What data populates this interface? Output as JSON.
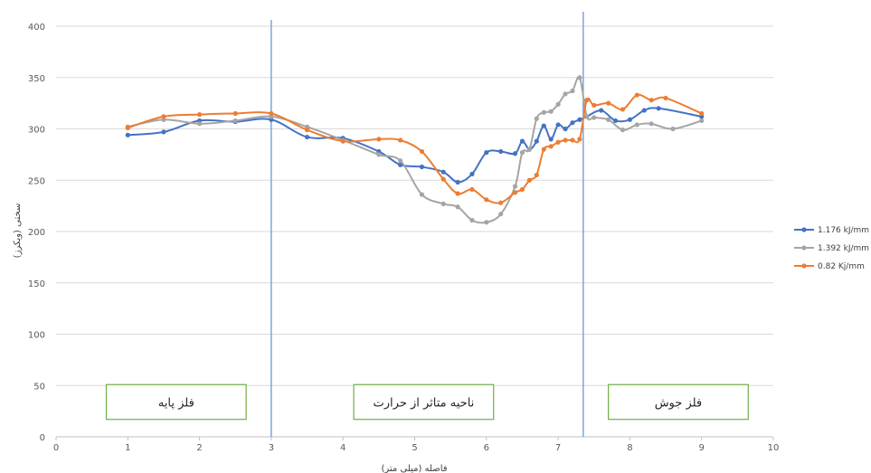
{
  "chart_data": {
    "type": "line",
    "title": "",
    "xlabel": "فاصله (میلی متر)",
    "ylabel": "سختی (ویکرز)",
    "xlim": [
      0,
      10
    ],
    "ylim": [
      0,
      400
    ],
    "x_ticks": [
      "0",
      "1",
      "2",
      "3",
      "4",
      "5",
      "6",
      "7",
      "8",
      "9",
      "10"
    ],
    "y_ticks": [
      "0",
      "50",
      "100",
      "150",
      "200",
      "250",
      "300",
      "350",
      "400"
    ],
    "grid": "horizontal",
    "legend_position": "right",
    "zone_boundaries": [
      3.0,
      7.35
    ],
    "zones": [
      {
        "label": "فلز پایه",
        "x_range": [
          0.7,
          2.65
        ]
      },
      {
        "label": "ناحیه متاثر از حرارت",
        "x_range": [
          4.15,
          6.1
        ]
      },
      {
        "label": "فلز جوش",
        "x_range": [
          7.7,
          9.65
        ]
      }
    ],
    "series": [
      {
        "name": "1.176 kJ/mm",
        "color": "#4472C4",
        "points": [
          [
            1.0,
            294
          ],
          [
            1.5,
            297
          ],
          [
            2.0,
            308
          ],
          [
            2.5,
            307
          ],
          [
            3.0,
            309
          ],
          [
            3.5,
            292
          ],
          [
            4.0,
            291
          ],
          [
            4.5,
            278
          ],
          [
            4.8,
            265
          ],
          [
            5.1,
            263
          ],
          [
            5.4,
            258
          ],
          [
            5.6,
            248
          ],
          [
            5.8,
            256
          ],
          [
            6.0,
            277
          ],
          [
            6.2,
            278
          ],
          [
            6.4,
            276
          ],
          [
            6.5,
            288
          ],
          [
            6.6,
            280
          ],
          [
            6.7,
            288
          ],
          [
            6.8,
            303
          ],
          [
            6.9,
            290
          ],
          [
            7.0,
            304
          ],
          [
            7.1,
            300
          ],
          [
            7.2,
            306
          ],
          [
            7.3,
            309
          ],
          [
            7.4,
            312
          ],
          [
            7.6,
            318
          ],
          [
            7.8,
            308
          ],
          [
            8.0,
            309
          ],
          [
            8.2,
            318
          ],
          [
            8.4,
            320
          ],
          [
            9.0,
            312
          ]
        ]
      },
      {
        "name": "1.392 kJ/mm",
        "color": "#A5A5A5",
        "points": [
          [
            1.0,
            302
          ],
          [
            1.5,
            309
          ],
          [
            2.0,
            305
          ],
          [
            2.5,
            308
          ],
          [
            3.0,
            312
          ],
          [
            3.5,
            302
          ],
          [
            4.0,
            289
          ],
          [
            4.5,
            275
          ],
          [
            4.8,
            269
          ],
          [
            5.1,
            236
          ],
          [
            5.4,
            227
          ],
          [
            5.6,
            224
          ],
          [
            5.8,
            211
          ],
          [
            6.0,
            209
          ],
          [
            6.2,
            217
          ],
          [
            6.4,
            244
          ],
          [
            6.5,
            277
          ],
          [
            6.6,
            280
          ],
          [
            6.7,
            310
          ],
          [
            6.8,
            316
          ],
          [
            6.9,
            317
          ],
          [
            7.0,
            324
          ],
          [
            7.1,
            334
          ],
          [
            7.2,
            337
          ],
          [
            7.3,
            350
          ],
          [
            7.4,
            312
          ],
          [
            7.5,
            311
          ],
          [
            7.7,
            309
          ],
          [
            7.9,
            299
          ],
          [
            8.1,
            304
          ],
          [
            8.3,
            305
          ],
          [
            8.6,
            300
          ],
          [
            9.0,
            308
          ]
        ]
      },
      {
        "name": "0.82 Kj/mm",
        "color": "#ED7D31",
        "points": [
          [
            1.0,
            301
          ],
          [
            1.5,
            312
          ],
          [
            2.0,
            314
          ],
          [
            2.5,
            315
          ],
          [
            3.0,
            315
          ],
          [
            3.5,
            299
          ],
          [
            4.0,
            288
          ],
          [
            4.5,
            290
          ],
          [
            4.8,
            289
          ],
          [
            5.1,
            278
          ],
          [
            5.4,
            251
          ],
          [
            5.6,
            237
          ],
          [
            5.8,
            241
          ],
          [
            6.0,
            231
          ],
          [
            6.2,
            228
          ],
          [
            6.4,
            238
          ],
          [
            6.5,
            241
          ],
          [
            6.6,
            250
          ],
          [
            6.7,
            255
          ],
          [
            6.8,
            280
          ],
          [
            6.9,
            283
          ],
          [
            7.0,
            287
          ],
          [
            7.1,
            289
          ],
          [
            7.2,
            289
          ],
          [
            7.3,
            290
          ],
          [
            7.4,
            328
          ],
          [
            7.5,
            323
          ],
          [
            7.7,
            325
          ],
          [
            7.9,
            319
          ],
          [
            8.1,
            333
          ],
          [
            8.3,
            328
          ],
          [
            8.5,
            330
          ],
          [
            9.0,
            315
          ]
        ]
      }
    ]
  }
}
